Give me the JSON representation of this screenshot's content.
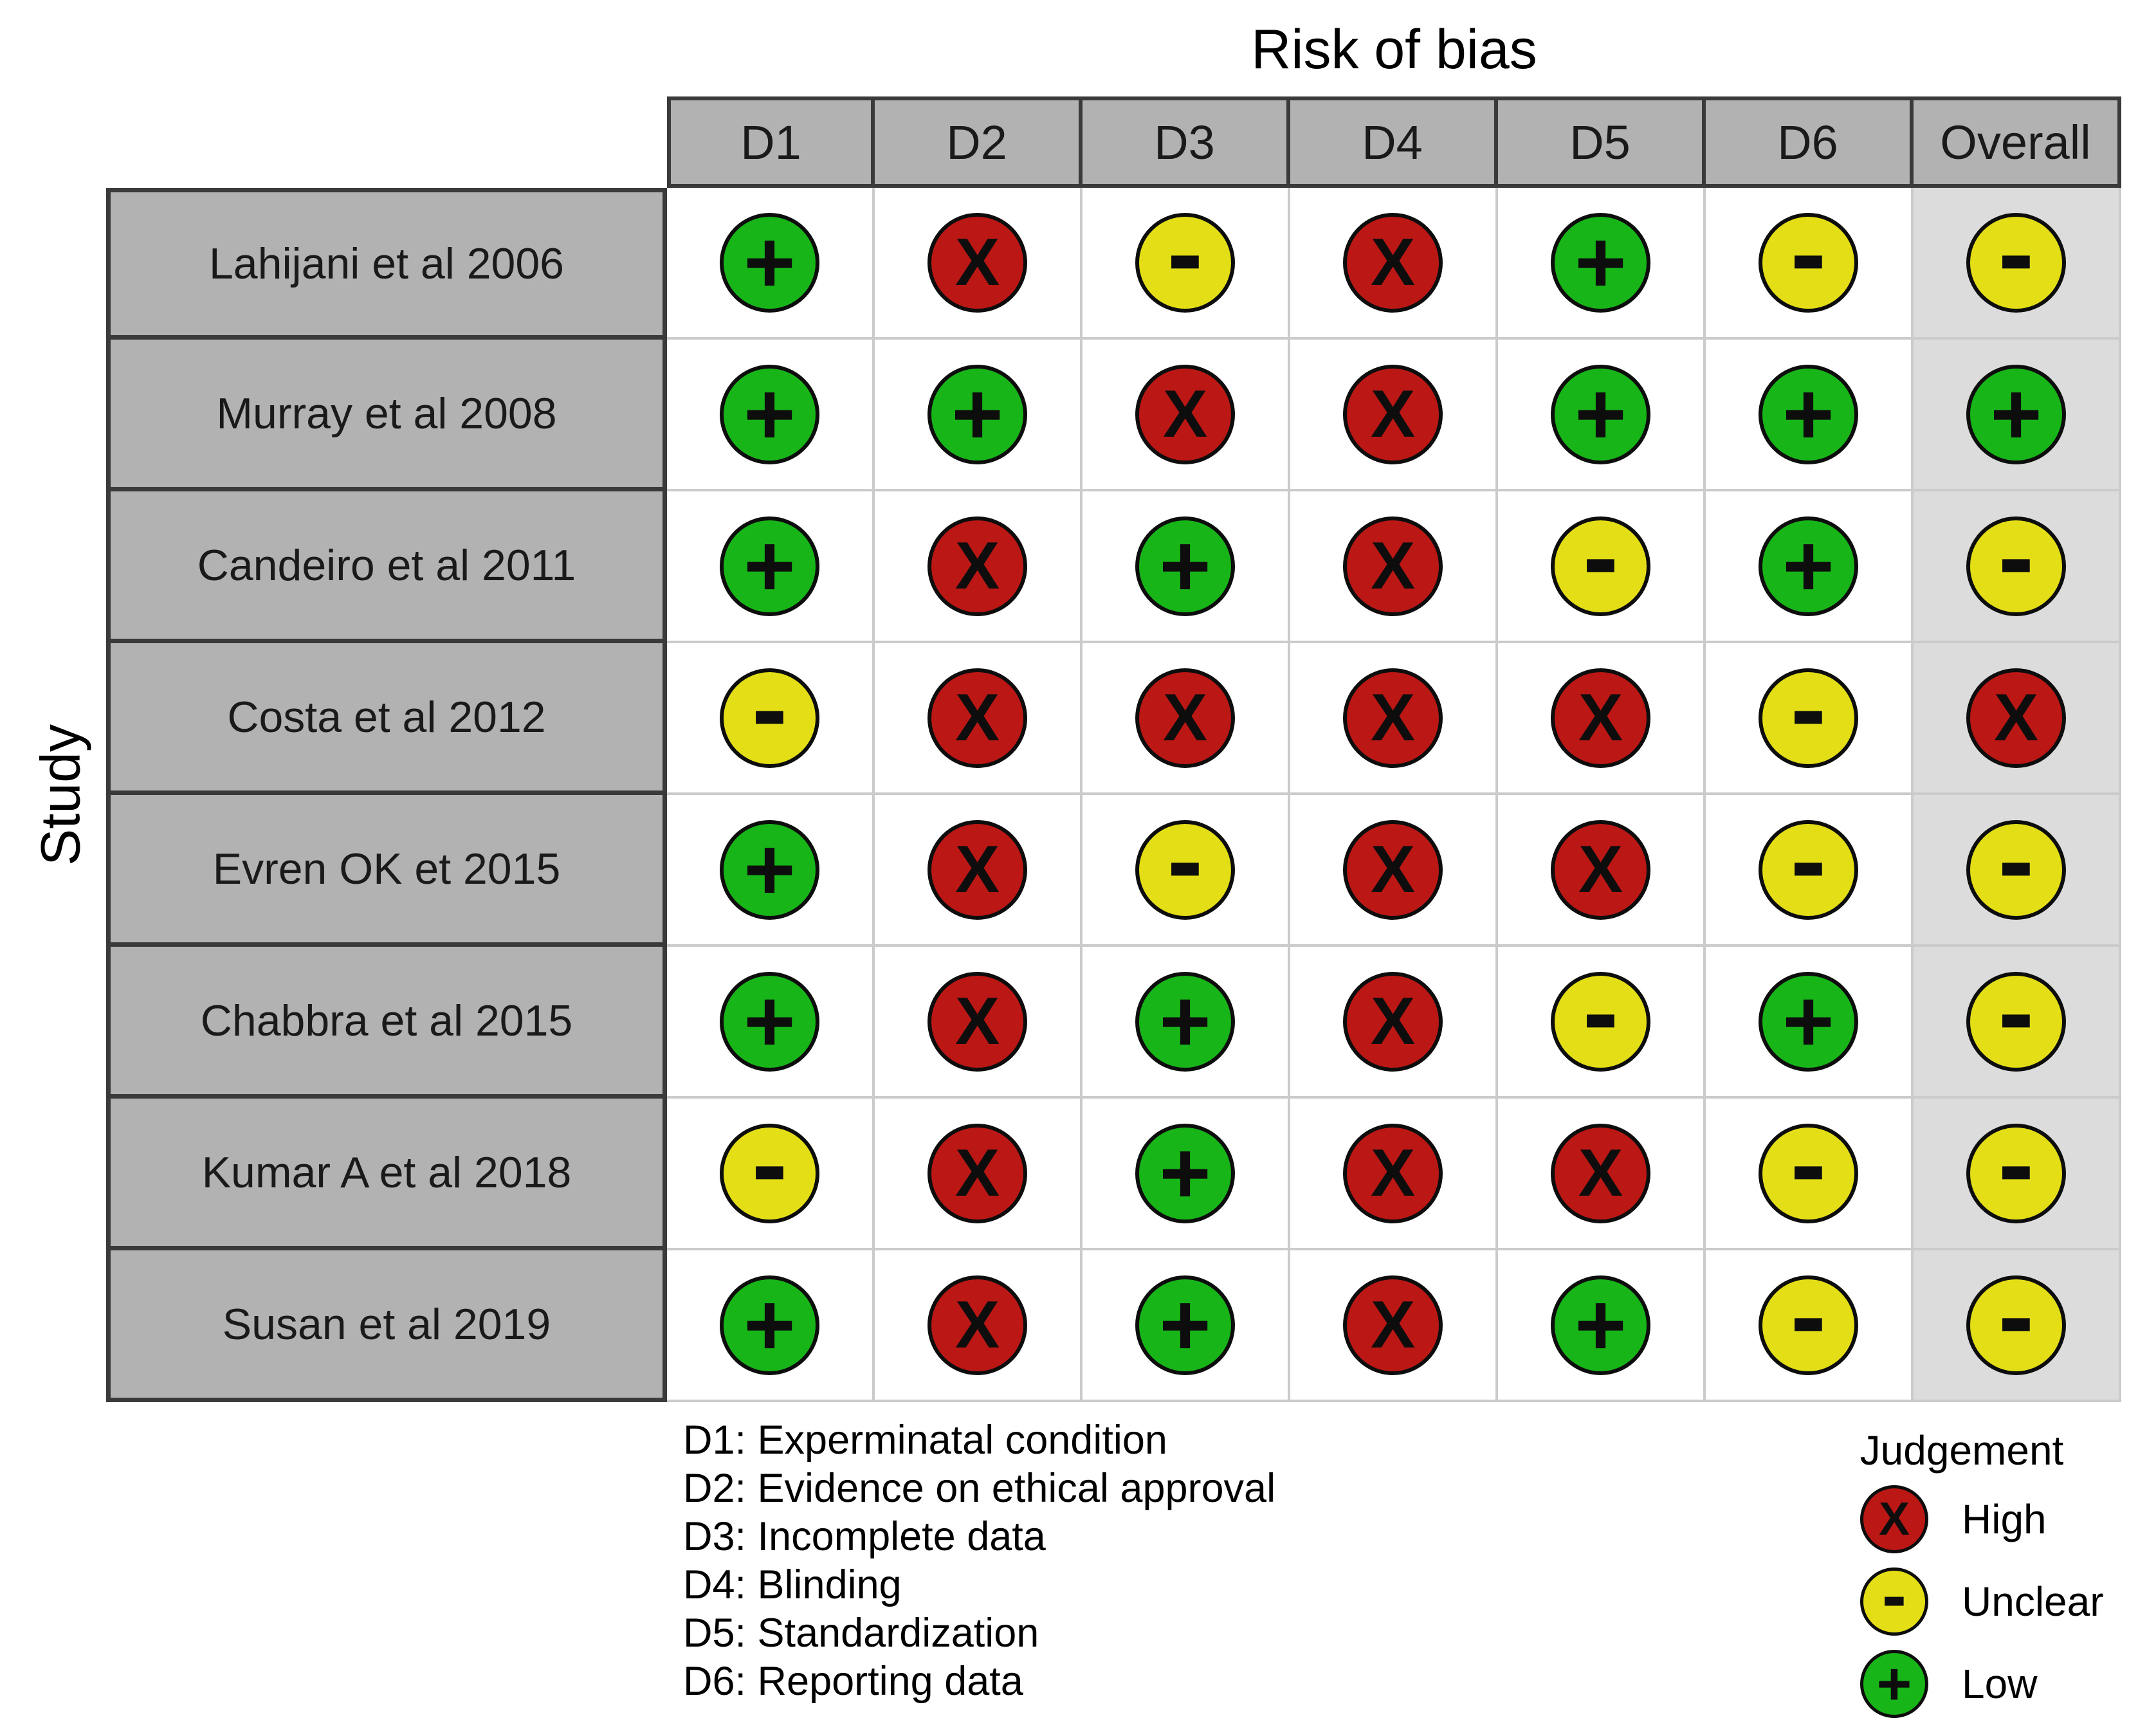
{
  "title": "Risk of bias",
  "y_axis_label": "Study",
  "columns": [
    "D1",
    "D2",
    "D3",
    "D4",
    "D5",
    "D6",
    "Overall"
  ],
  "rows": [
    {
      "study": "Lahijani et al 2006",
      "judgements": [
        "low",
        "high",
        "unclear",
        "high",
        "low",
        "unclear",
        "unclear"
      ]
    },
    {
      "study": "Murray et al 2008",
      "judgements": [
        "low",
        "low",
        "high",
        "high",
        "low",
        "low",
        "low"
      ]
    },
    {
      "study": "Candeiro et al 2011",
      "judgements": [
        "low",
        "high",
        "low",
        "high",
        "unclear",
        "low",
        "unclear"
      ]
    },
    {
      "study": "Costa et al 2012",
      "judgements": [
        "unclear",
        "high",
        "high",
        "high",
        "high",
        "unclear",
        "high"
      ]
    },
    {
      "study": "Evren OK et 2015",
      "judgements": [
        "low",
        "high",
        "unclear",
        "high",
        "high",
        "unclear",
        "unclear"
      ]
    },
    {
      "study": "Chabbra et al 2015",
      "judgements": [
        "low",
        "high",
        "low",
        "high",
        "unclear",
        "low",
        "unclear"
      ]
    },
    {
      "study": "Kumar A et al 2018",
      "judgements": [
        "unclear",
        "high",
        "low",
        "high",
        "high",
        "unclear",
        "unclear"
      ]
    },
    {
      "study": "Susan et al 2019",
      "judgements": [
        "low",
        "high",
        "low",
        "high",
        "low",
        "unclear",
        "unclear"
      ]
    }
  ],
  "judgements": {
    "high": {
      "symbol": "X",
      "color": "#bb1715",
      "label": "High"
    },
    "unclear": {
      "symbol": "-",
      "color": "#e3de15",
      "label": "Unclear"
    },
    "low": {
      "symbol": "+",
      "color": "#17b517",
      "label": "Low"
    }
  },
  "footnotes": [
    "D1: Experminatal condition",
    "D2: Evidence on ethical approval",
    "D3: Incomplete data",
    "D4: Blinding",
    "D5: Standardization",
    "D6: Reporting data"
  ],
  "legend": {
    "title": "Judgement",
    "items": [
      {
        "judgement": "high",
        "label": "High"
      },
      {
        "judgement": "unclear",
        "label": "Unclear"
      },
      {
        "judgement": "low",
        "label": "Low"
      }
    ]
  },
  "colors": {
    "header_bg": "#b2b2b2",
    "study_bg": "#b2b2b2",
    "overall_bg": "#dcdcdc",
    "border_dark": "#3a3a3a",
    "grid_light": "#cbcbcb",
    "symbol": "#0d0d0d"
  },
  "chart_data": {
    "type": "heatmap",
    "title": "Risk of bias",
    "x_categories": [
      "D1",
      "D2",
      "D3",
      "D4",
      "D5",
      "D6",
      "Overall"
    ],
    "y_categories": [
      "Lahijani et al 2006",
      "Murray et al 2008",
      "Candeiro et al 2011",
      "Costa et al 2012",
      "Evren OK et 2015",
      "Chabbra et al 2015",
      "Kumar A et al 2018",
      "Susan et al 2019"
    ],
    "values": [
      [
        "low",
        "high",
        "unclear",
        "high",
        "low",
        "unclear",
        "unclear"
      ],
      [
        "low",
        "low",
        "high",
        "high",
        "low",
        "low",
        "low"
      ],
      [
        "low",
        "high",
        "low",
        "high",
        "unclear",
        "low",
        "unclear"
      ],
      [
        "unclear",
        "high",
        "high",
        "high",
        "high",
        "unclear",
        "high"
      ],
      [
        "low",
        "high",
        "unclear",
        "high",
        "high",
        "unclear",
        "unclear"
      ],
      [
        "low",
        "high",
        "low",
        "high",
        "unclear",
        "low",
        "unclear"
      ],
      [
        "unclear",
        "high",
        "low",
        "high",
        "high",
        "unclear",
        "unclear"
      ],
      [
        "low",
        "high",
        "low",
        "high",
        "low",
        "unclear",
        "unclear"
      ]
    ],
    "value_encoding": {
      "high": {
        "symbol": "X",
        "color": "#bb1715"
      },
      "unclear": {
        "symbol": "-",
        "color": "#e3de15"
      },
      "low": {
        "symbol": "+",
        "color": "#17b517"
      }
    },
    "legend": {
      "title": "Judgement",
      "entries": [
        "High",
        "Unclear",
        "Low"
      ],
      "position": "bottom-right"
    },
    "xlabel": "",
    "ylabel": "Study",
    "annotations": [
      "D1: Experminatal condition",
      "D2: Evidence on ethical approval",
      "D3: Incomplete data",
      "D4: Blinding",
      "D5: Standardization",
      "D6: Reporting data"
    ],
    "grid": true
  }
}
